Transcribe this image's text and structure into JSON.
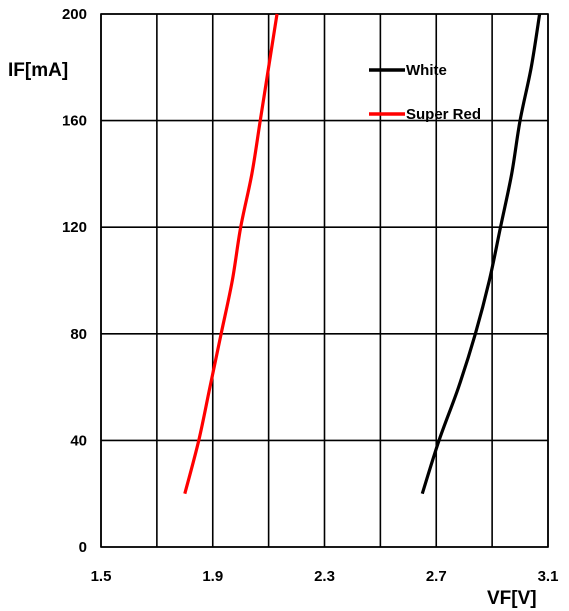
{
  "chart_data": {
    "type": "line",
    "title": "",
    "xlabel": "VF[V]",
    "ylabel": "IF[mA]",
    "xlim": [
      1.5,
      3.1
    ],
    "ylim": [
      0,
      200
    ],
    "x_ticks": [
      {
        "value": 1.5,
        "label": "1.5"
      },
      {
        "value": 1.9,
        "label": "1.9"
      },
      {
        "value": 2.3,
        "label": "2.3"
      },
      {
        "value": 2.7,
        "label": "2.7"
      },
      {
        "value": 3.1,
        "label": "3.1"
      }
    ],
    "y_ticks": [
      {
        "value": 0,
        "label": "0"
      },
      {
        "value": 40,
        "label": "40"
      },
      {
        "value": 80,
        "label": "80"
      },
      {
        "value": 120,
        "label": "120"
      },
      {
        "value": 160,
        "label": "160"
      },
      {
        "value": 200,
        "label": "200"
      }
    ],
    "x_grid": [
      1.5,
      1.7,
      1.9,
      2.1,
      2.3,
      2.5,
      2.7,
      2.9,
      3.1
    ],
    "y_grid": [
      0,
      40,
      80,
      120,
      160,
      200
    ],
    "grid": true,
    "legend_position": "top-right",
    "series": [
      {
        "name": "White",
        "color": "#000000",
        "points": [
          {
            "x": 2.65,
            "y": 20
          },
          {
            "x": 2.71,
            "y": 40
          },
          {
            "x": 2.78,
            "y": 60
          },
          {
            "x": 2.84,
            "y": 80
          },
          {
            "x": 2.89,
            "y": 100
          },
          {
            "x": 2.93,
            "y": 120
          },
          {
            "x": 2.97,
            "y": 140
          },
          {
            "x": 3.0,
            "y": 160
          },
          {
            "x": 3.04,
            "y": 180
          },
          {
            "x": 3.07,
            "y": 200
          }
        ]
      },
      {
        "name": "Super Red",
        "color": "#ff0000",
        "points": [
          {
            "x": 1.8,
            "y": 20
          },
          {
            "x": 1.85,
            "y": 40
          },
          {
            "x": 1.89,
            "y": 60
          },
          {
            "x": 1.93,
            "y": 80
          },
          {
            "x": 1.97,
            "y": 100
          },
          {
            "x": 2.0,
            "y": 120
          },
          {
            "x": 2.04,
            "y": 140
          },
          {
            "x": 2.07,
            "y": 160
          },
          {
            "x": 2.1,
            "y": 180
          },
          {
            "x": 2.13,
            "y": 200
          }
        ]
      }
    ]
  }
}
